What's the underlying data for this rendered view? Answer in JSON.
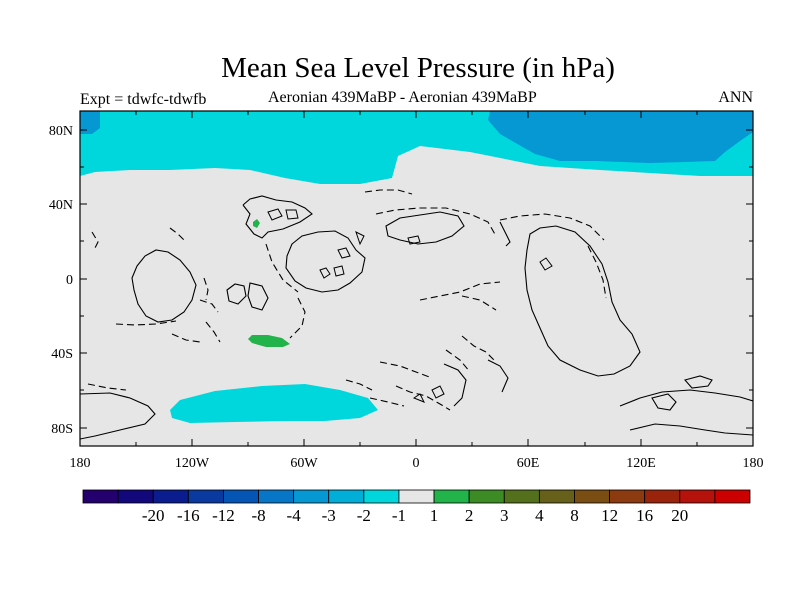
{
  "map": {
    "title": "Mean Sea Level Pressure (in hPa)",
    "subtitle_left": "Expt = tdwfc-tdwfb",
    "subtitle_center": "Aeronian 439MaBP - Aeronian 439MaBP",
    "subtitle_right": "ANN",
    "y_axis_labels": [
      "80N",
      "40N",
      "0",
      "40S",
      "80S"
    ],
    "x_axis_labels": [
      "180",
      "120W",
      "60W",
      "0",
      "60E",
      "120E",
      "180"
    ]
  },
  "colorbar": {
    "colors": [
      "#23006e",
      "#12087c",
      "#0a1c8e",
      "#0a3aa0",
      "#0555b5",
      "#0776c6",
      "#0598d3",
      "#00aed8",
      "#00d7dc",
      "#e6e6e6",
      "#22b44a",
      "#3d8b25",
      "#55701c",
      "#66601a",
      "#7a4e12",
      "#8c3a10",
      "#9a230c",
      "#b5120c",
      "#cc0000"
    ],
    "labels": [
      "-20",
      "-16",
      "-12",
      "-8",
      "-4",
      "-3",
      "-2",
      "-1",
      "1",
      "2",
      "3",
      "4",
      "8",
      "12",
      "16",
      "20"
    ]
  },
  "regions": {
    "low_medium_color": "#00d7dc",
    "low_strong_color": "#0598d3",
    "high_color": "#22b44a",
    "neutral_color": "#e6e6e6"
  }
}
